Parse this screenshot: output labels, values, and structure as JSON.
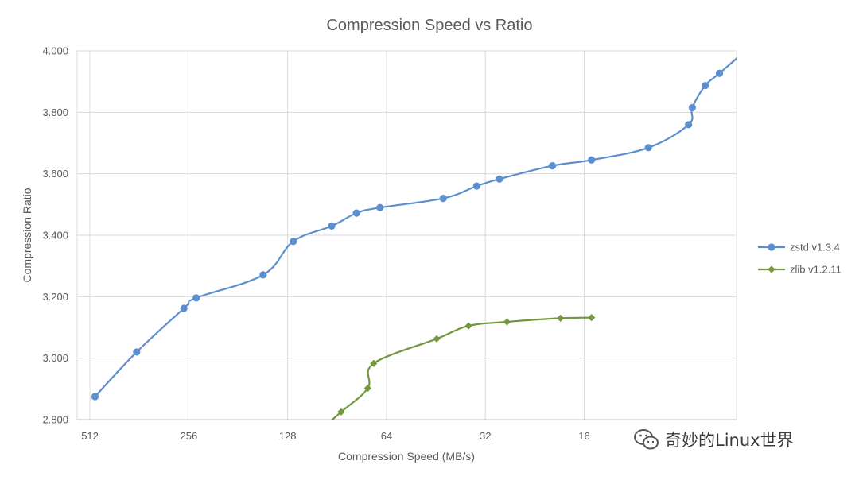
{
  "chart_data": {
    "type": "line",
    "title": "Compression Speed vs Ratio",
    "xlabel": "Compression Speed (MB/s)",
    "ylabel": "Compression Ratio",
    "x_scale": "log2-reversed",
    "xlim": [
      560,
      5.5
    ],
    "ylim": [
      2.8,
      4.0
    ],
    "x_ticks": [
      512,
      256,
      128,
      64,
      32,
      16
    ],
    "x_tick_labels": [
      "512",
      "256",
      "128",
      "64",
      "32",
      "16"
    ],
    "y_ticks": [
      2.8,
      3.0,
      3.2,
      3.4,
      3.6,
      3.8,
      4.0
    ],
    "y_tick_labels": [
      "2.800",
      "3.000",
      "3.200",
      "3.400",
      "3.600",
      "3.800",
      "4.000"
    ],
    "grid": true,
    "legend_position": "right",
    "series": [
      {
        "name": "zstd v1.3.4",
        "color": "#5b8fd0",
        "marker": "circle",
        "x": [
          494,
          369,
          265,
          243,
          152,
          123,
          94,
          79,
          67,
          43,
          34,
          29,
          20,
          15.2,
          10.2,
          7.7,
          7.5,
          6.85,
          6.2
        ],
        "y": [
          2.875,
          3.02,
          3.162,
          3.196,
          3.271,
          3.38,
          3.43,
          3.472,
          3.49,
          3.52,
          3.56,
          3.583,
          3.626,
          3.645,
          3.685,
          3.76,
          3.815,
          3.887,
          3.927
        ]
      },
      {
        "name": "zlib v1.2.11",
        "color": "#72973c",
        "marker": "diamond",
        "x": [
          88,
          73,
          70,
          45,
          36,
          27.5,
          18.9,
          15.2
        ],
        "y": [
          2.825,
          2.902,
          2.983,
          3.063,
          3.105,
          3.118,
          3.13,
          3.132
        ]
      }
    ]
  },
  "watermark": {
    "text": "奇妙的Linux世界"
  }
}
